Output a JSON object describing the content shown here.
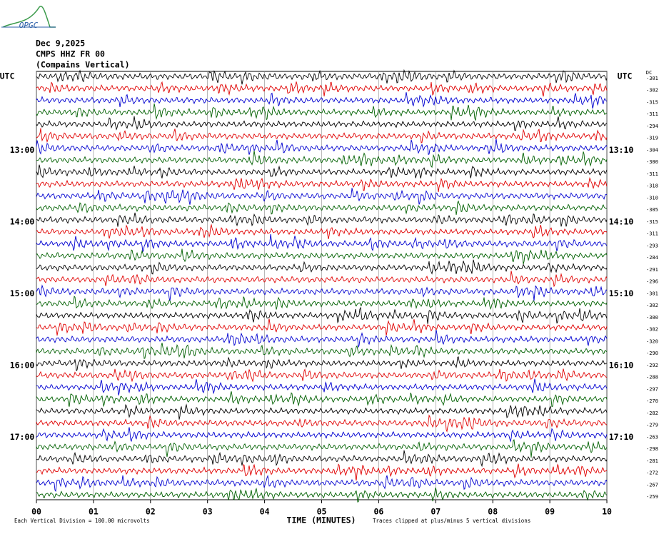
{
  "chart_data": {
    "type": "helicorder",
    "logo": "OPGC",
    "title_lines": [
      "Dec 9,2025",
      "CMPS HHZ FR 00",
      "(Compains Vertical)"
    ],
    "left_header": "UTC",
    "right_header": "UTC",
    "dc_header": "DC",
    "left_times": [
      null,
      null,
      null,
      null,
      null,
      null,
      "13:00",
      null,
      null,
      null,
      null,
      null,
      "14:00",
      null,
      null,
      null,
      null,
      null,
      "15:00",
      null,
      null,
      null,
      null,
      null,
      "16:00",
      null,
      null,
      null,
      null,
      null,
      "17:00",
      null,
      null,
      null,
      null,
      null
    ],
    "right_times": [
      null,
      null,
      null,
      null,
      null,
      null,
      "13:10",
      null,
      null,
      null,
      null,
      null,
      "14:10",
      null,
      null,
      null,
      null,
      null,
      "15:10",
      null,
      null,
      null,
      null,
      null,
      "16:10",
      null,
      null,
      null,
      null,
      null,
      "17:10",
      null,
      null,
      null,
      null,
      null
    ],
    "dc_offsets": [
      -301,
      -302,
      -315,
      -311,
      -294,
      -319,
      -304,
      -300,
      -311,
      -318,
      -310,
      -305,
      -315,
      -311,
      -293,
      -284,
      -291,
      -296,
      -301,
      -302,
      -300,
      -302,
      -320,
      -290,
      -292,
      -288,
      -297,
      -270,
      -282,
      -279,
      -263,
      -298,
      -281,
      -272,
      -267,
      -259
    ],
    "trace_colors": [
      "#000000",
      "#e00000",
      "#0000d0",
      "#006000"
    ],
    "xlim": [
      0,
      10
    ],
    "xticks": [
      {
        "value": 0,
        "label": "00"
      },
      {
        "value": 1,
        "label": "01"
      },
      {
        "value": 2,
        "label": "02"
      },
      {
        "value": 3,
        "label": "03"
      },
      {
        "value": 4,
        "label": "04"
      },
      {
        "value": 5,
        "label": "05"
      },
      {
        "value": 6,
        "label": "06"
      },
      {
        "value": 7,
        "label": "07"
      },
      {
        "value": 8,
        "label": "08"
      },
      {
        "value": 9,
        "label": "09"
      },
      {
        "value": 10,
        "label": "10"
      }
    ],
    "xlabel": "TIME (MINUTES)",
    "footer_left": "Each Vertical Division =  100.00 microvolts",
    "footer_right": "Traces clipped at plus/minus 5 vertical divisions"
  }
}
